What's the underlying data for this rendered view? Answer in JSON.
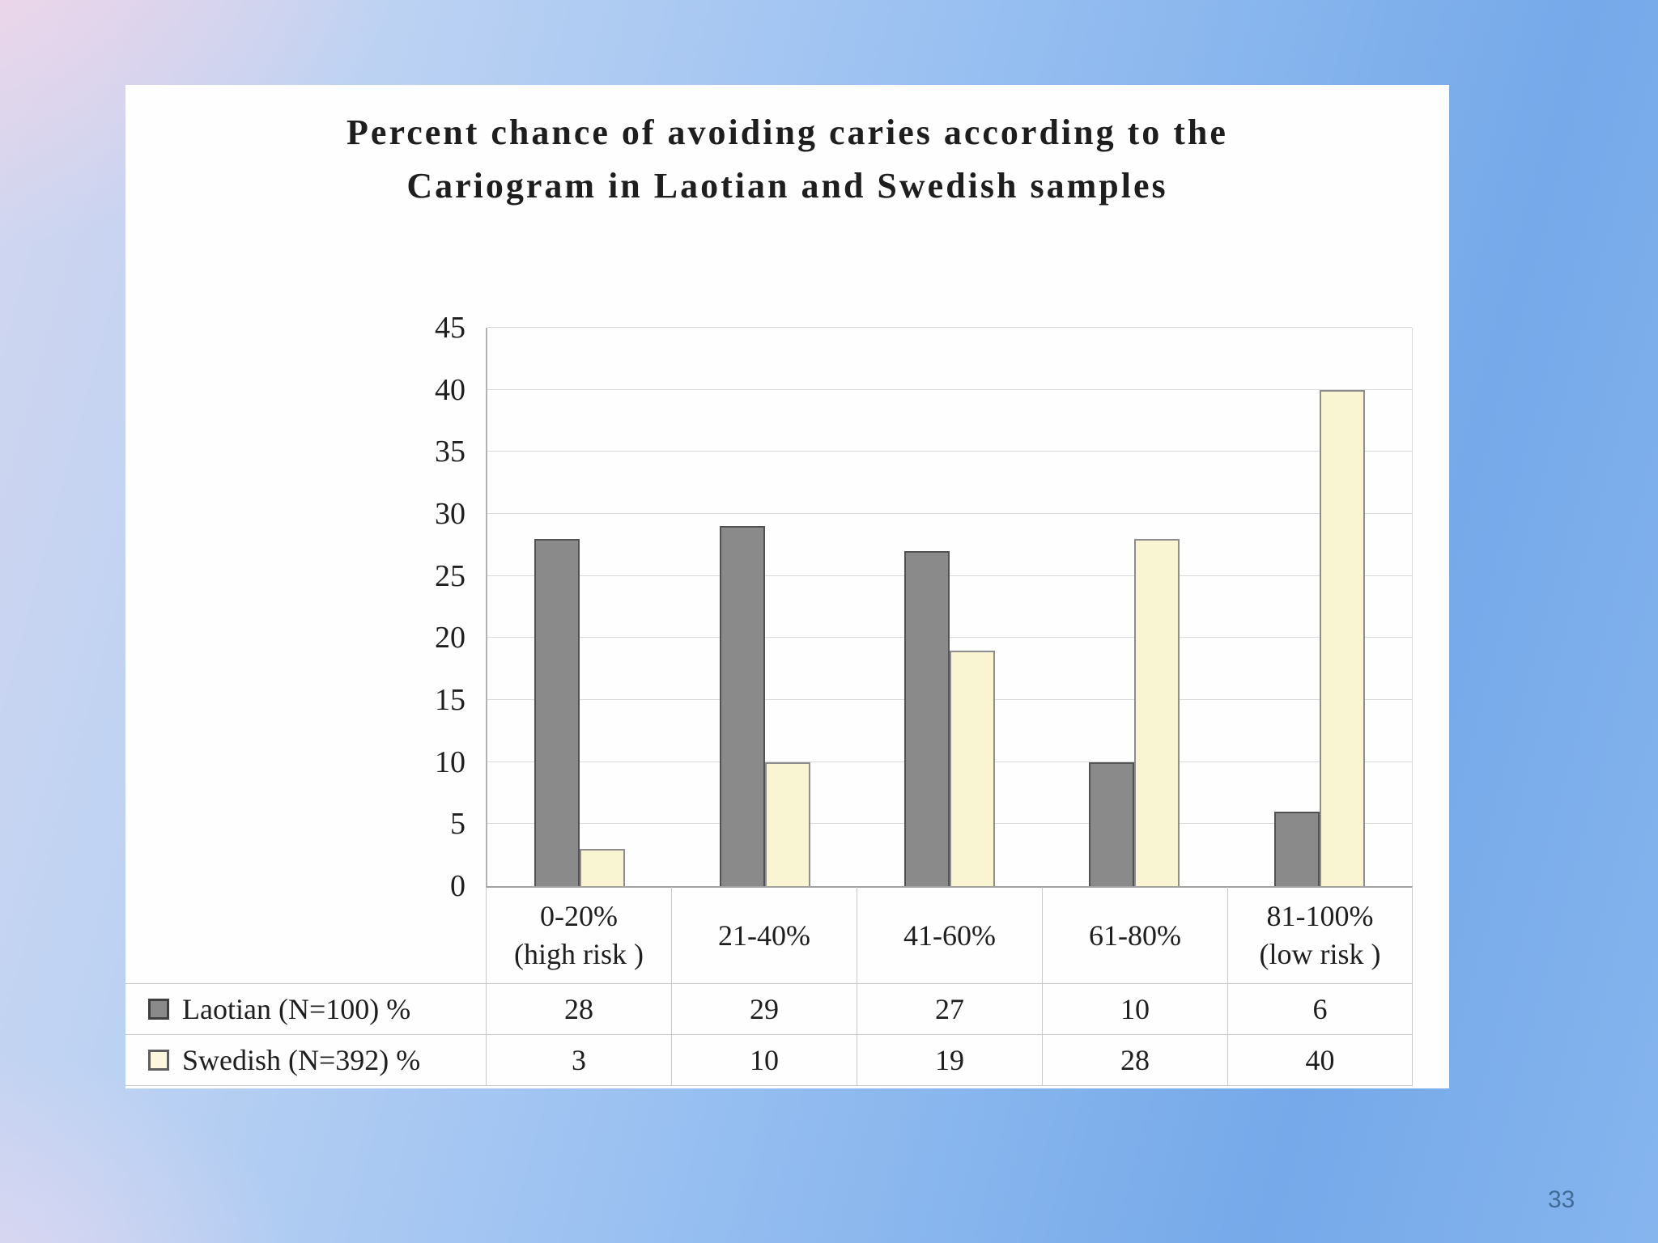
{
  "page_number": "33",
  "chart_data": {
    "type": "bar",
    "title": "Percent chance of avoiding caries according to the\nCariogram in Laotian and Swedish samples",
    "categories": [
      "0-20%\n(high risk )",
      "21-40%",
      "41-60%",
      "61-80%",
      "81-100%\n(low risk )"
    ],
    "series": [
      {
        "name": "Laotian (N=100) %",
        "values": [
          28,
          29,
          27,
          10,
          6
        ],
        "color": "#8a8a8a"
      },
      {
        "name": "Swedish (N=392) %",
        "values": [
          3,
          10,
          19,
          28,
          40
        ],
        "color": "#f9f4d2"
      }
    ],
    "xlabel": "",
    "ylabel": "",
    "ylim": [
      0,
      45
    ],
    "yticks": [
      0,
      5,
      10,
      15,
      20,
      25,
      30,
      35,
      40,
      45
    ],
    "grid": true,
    "legend_position": "table-left"
  }
}
